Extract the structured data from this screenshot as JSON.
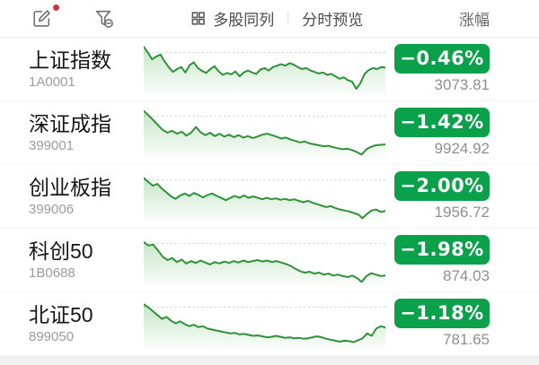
{
  "header": {
    "multi_stock_label": "多股同列",
    "intraday_preview_label": "分时预览",
    "sort_column_label": "涨幅"
  },
  "rows": [
    {
      "name": "上证指数",
      "code": "1A0001",
      "change": "−0.46%",
      "value": "3073.81",
      "sparkline": [
        4,
        16,
        30,
        24,
        20,
        34,
        46,
        56,
        50,
        46,
        57,
        42,
        36,
        48,
        54,
        58,
        50,
        44,
        55,
        62,
        58,
        61,
        55,
        65,
        57,
        53,
        57,
        60,
        51,
        48,
        53,
        46,
        43,
        40,
        43,
        38,
        41,
        46,
        50,
        48,
        53,
        56,
        59,
        57,
        62,
        60,
        65,
        70,
        67,
        73,
        76,
        91,
        79,
        60,
        52,
        48,
        50,
        46,
        47
      ]
    },
    {
      "name": "深证成指",
      "code": "399001",
      "change": "−1.42%",
      "value": "9924.92",
      "sparkline": [
        5,
        14,
        24,
        34,
        44,
        50,
        46,
        52,
        48,
        56,
        50,
        38,
        49,
        55,
        50,
        57,
        52,
        58,
        54,
        59,
        55,
        60,
        57,
        61,
        58,
        54,
        52,
        55,
        58,
        62,
        60,
        64,
        67,
        70,
        68,
        72,
        74,
        76,
        78,
        77,
        80,
        82,
        84,
        83,
        86,
        90,
        95,
        84,
        79,
        76,
        75,
        74
      ]
    },
    {
      "name": "创业板指",
      "code": "399006",
      "change": "−2.00%",
      "value": "1956.72",
      "sparkline": [
        12,
        20,
        28,
        24,
        34,
        42,
        50,
        55,
        48,
        44,
        49,
        43,
        47,
        52,
        47,
        44,
        49,
        53,
        58,
        53,
        49,
        53,
        48,
        53,
        50,
        53,
        56,
        53,
        56,
        54,
        57,
        55,
        58,
        56,
        59,
        62,
        59,
        63,
        66,
        69,
        72,
        70,
        74,
        77,
        79,
        81,
        84,
        87,
        95,
        86,
        79,
        77,
        82,
        80
      ]
    },
    {
      "name": "科创50",
      "code": "1B0688",
      "change": "−1.98%",
      "value": "874.03",
      "sparkline": [
        13,
        20,
        18,
        30,
        43,
        50,
        46,
        54,
        49,
        57,
        52,
        56,
        51,
        55,
        59,
        54,
        57,
        53,
        56,
        52,
        55,
        51,
        54,
        52,
        50,
        53,
        51,
        54,
        52,
        55,
        58,
        62,
        68,
        73,
        76,
        74,
        78,
        76,
        80,
        78,
        82,
        80,
        83,
        85,
        82,
        87,
        95,
        83,
        77,
        80,
        83,
        82
      ]
    },
    {
      "name": "北证50",
      "code": "899050",
      "change": "−1.18%",
      "value": "781.65",
      "sparkline": [
        10,
        16,
        24,
        32,
        40,
        36,
        44,
        49,
        45,
        51,
        55,
        52,
        57,
        55,
        60,
        62,
        64,
        66,
        68,
        70,
        69,
        72,
        71,
        73,
        75,
        74,
        76,
        78,
        77,
        75,
        77,
        79,
        78,
        80,
        79,
        81,
        80,
        78,
        76,
        78,
        81,
        83,
        85,
        87,
        85,
        86,
        88,
        84,
        80,
        70,
        75,
        60,
        55,
        58
      ]
    }
  ],
  "colors": {
    "badge_green": "#0ba04a",
    "line_green": "#2f9138",
    "fill_green": "#4caf50",
    "ref_line": "#c9c9c9",
    "red_dot": "#c53b33",
    "icon_gray": "#6e6e6e"
  }
}
